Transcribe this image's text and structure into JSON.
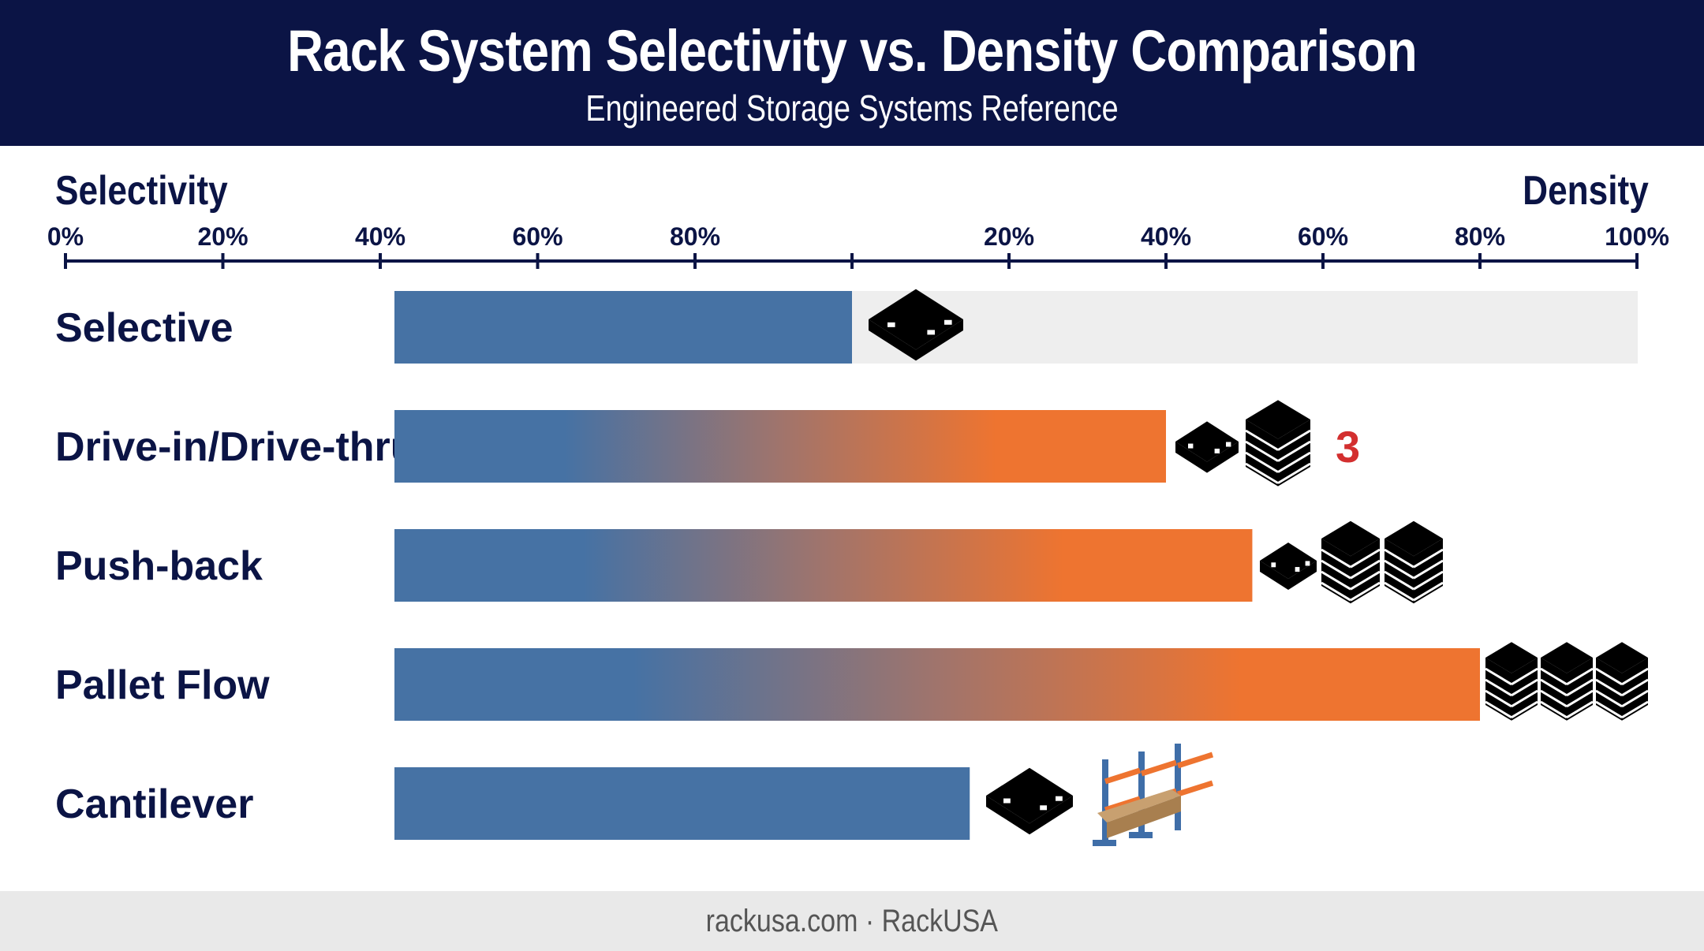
{
  "header": {
    "title": "Rack System Selectivity vs. Density Comparison",
    "subtitle": "Engineered Storage Systems Reference"
  },
  "footer": {
    "text": "rackusa.com · RackUSA"
  },
  "colors": {
    "header_bg": "#0b1445",
    "selectivity_blue": "#4672a4",
    "density_orange": "#ee7430",
    "track_gray": "#eeeeee",
    "count_red": "#d32f2f"
  },
  "chart_data": {
    "type": "bar",
    "orientation": "horizontal",
    "axes": {
      "left_label": "Selectivity",
      "right_label": "Density",
      "left_ticks": [
        "0%",
        "20%",
        "40%",
        "60%",
        "80%"
      ],
      "right_ticks": [
        "20%",
        "40%",
        "60%",
        "80%",
        "100%"
      ]
    },
    "categories": [
      "Selective",
      "Drive-in/Drive-thru",
      "Push-back",
      "Pallet Flow",
      "Cantilever"
    ],
    "series": [
      {
        "values": [
          100,
          40,
          55,
          80,
          100
        ],
        "unit": "% selectivity"
      },
      {
        "values": [
          0,
          40,
          51,
          80,
          15
        ],
        "unit": "% density"
      }
    ],
    "icons": [
      {
        "row": "Selective",
        "items": [
          "single-pallet-icon"
        ]
      },
      {
        "row": "Drive-in/Drive-thru",
        "items": [
          "single-pallet-icon",
          "pallet-stack-icon"
        ],
        "count_label": "3"
      },
      {
        "row": "Push-back",
        "items": [
          "single-pallet-icon",
          "pallet-stack-icon",
          "pallet-stack-icon"
        ]
      },
      {
        "row": "Pallet Flow",
        "items": [
          "pallet-stack-icon",
          "pallet-stack-icon",
          "pallet-stack-icon"
        ]
      },
      {
        "row": "Cantilever",
        "items": [
          "single-pallet-icon",
          "cantilever-rack-icon"
        ]
      }
    ],
    "grid": false,
    "legend": "none"
  }
}
